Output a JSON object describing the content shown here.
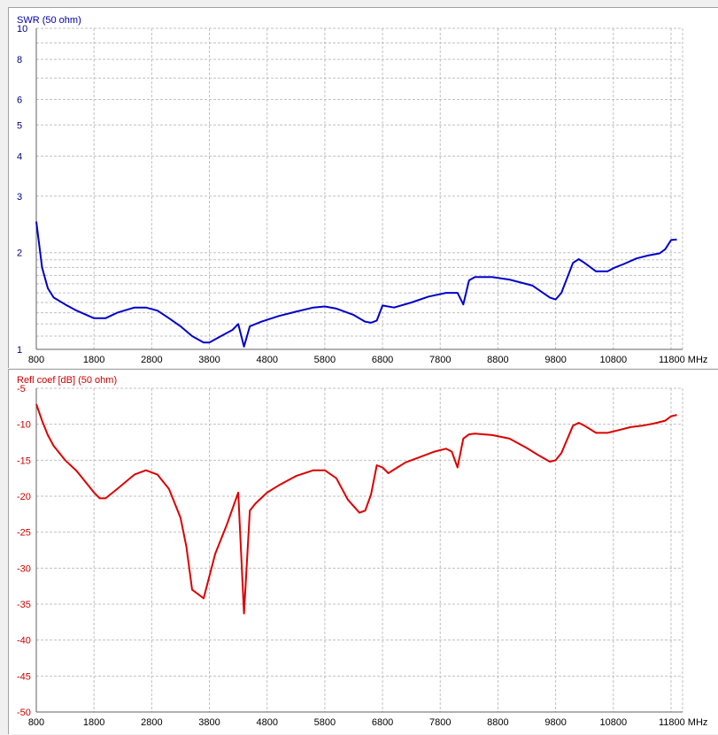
{
  "chart_data": [
    {
      "type": "line",
      "title": "SWR (50 ohm)",
      "xlabel": "MHz",
      "ylabel": "",
      "log_scale_y": true,
      "grid": true,
      "xlim": [
        800,
        12000
      ],
      "ylim": [
        1,
        10
      ],
      "x_ticks": [
        "800",
        "1800",
        "2800",
        "3800",
        "4800",
        "5800",
        "6800",
        "7800",
        "8800",
        "9800",
        "10800",
        "11800 MHz"
      ],
      "y_ticks": [
        "10",
        "8",
        "6",
        "5",
        "4",
        "3",
        "2",
        "1"
      ],
      "y_tick_values": [
        10,
        8,
        6,
        5,
        4,
        3,
        2,
        1
      ],
      "colors": {
        "line": "#0000cc",
        "title": "#0000aa",
        "axis": "#000080",
        "grid": "#c0c0c0"
      },
      "series": [
        {
          "x": [
            800,
            900,
            1000,
            1100,
            1300,
            1500,
            1800,
            2000,
            2200,
            2500,
            2700,
            2900,
            3100,
            3300,
            3500,
            3700,
            3800,
            4000,
            4200,
            4300,
            4400,
            4500,
            4700,
            5000,
            5300,
            5600,
            5800,
            6000,
            6300,
            6500,
            6600,
            6700,
            6800,
            7000,
            7300,
            7600,
            7900,
            8100,
            8200,
            8300,
            8400,
            8700,
            9000,
            9400,
            9700,
            9800,
            9900,
            10100,
            10200,
            10300,
            10500,
            10700,
            10800,
            11000,
            11200,
            11400,
            11600,
            11700,
            11800,
            11900
          ],
          "y": [
            2.5,
            1.8,
            1.55,
            1.45,
            1.38,
            1.32,
            1.25,
            1.25,
            1.3,
            1.35,
            1.35,
            1.32,
            1.25,
            1.18,
            1.1,
            1.05,
            1.05,
            1.1,
            1.15,
            1.2,
            1.02,
            1.18,
            1.22,
            1.27,
            1.31,
            1.35,
            1.36,
            1.34,
            1.28,
            1.22,
            1.21,
            1.23,
            1.37,
            1.35,
            1.4,
            1.46,
            1.5,
            1.5,
            1.38,
            1.64,
            1.68,
            1.68,
            1.65,
            1.58,
            1.45,
            1.43,
            1.5,
            1.86,
            1.91,
            1.86,
            1.75,
            1.75,
            1.79,
            1.85,
            1.92,
            1.96,
            1.99,
            2.05,
            2.19,
            2.2
          ]
        }
      ]
    },
    {
      "type": "line",
      "title": "Refl coef [dB] (50 ohm)",
      "xlabel": "MHz",
      "ylabel": "",
      "grid": true,
      "xlim": [
        800,
        12000
      ],
      "ylim": [
        -50,
        -5
      ],
      "x_ticks": [
        "800",
        "1800",
        "2800",
        "3800",
        "4800",
        "5800",
        "6800",
        "7800",
        "8800",
        "9800",
        "10800",
        "11800 MHz"
      ],
      "y_ticks": [
        "-5",
        "-10",
        "-15",
        "-20",
        "-25",
        "-30",
        "-35",
        "-40",
        "-45",
        "-50"
      ],
      "y_tick_values": [
        -5,
        -10,
        -15,
        -20,
        -25,
        -30,
        -35,
        -40,
        -45,
        -50
      ],
      "colors": {
        "line": "#dd0000",
        "title": "#cc0000",
        "axis": "#cc0000",
        "grid": "#c0c0c0"
      },
      "series": [
        {
          "x": [
            800,
            900,
            1000,
            1100,
            1300,
            1500,
            1800,
            1900,
            2000,
            2200,
            2500,
            2700,
            2900,
            3100,
            3300,
            3400,
            3500,
            3700,
            3900,
            4100,
            4300,
            4400,
            4500,
            4600,
            4800,
            5000,
            5300,
            5600,
            5800,
            6000,
            6200,
            6400,
            6500,
            6600,
            6700,
            6800,
            6900,
            7000,
            7200,
            7400,
            7700,
            7900,
            8000,
            8100,
            8200,
            8300,
            8400,
            8700,
            9000,
            9300,
            9500,
            9700,
            9800,
            9900,
            10100,
            10200,
            10300,
            10500,
            10700,
            10900,
            11100,
            11300,
            11500,
            11700,
            11800,
            11900
          ],
          "y": [
            -7.2,
            -9.5,
            -11.5,
            -13,
            -15,
            -16.5,
            -19.5,
            -20.3,
            -20.3,
            -19,
            -17,
            -16.4,
            -17,
            -19,
            -23,
            -27,
            -33,
            -34.2,
            -28,
            -24,
            -19.5,
            -36.3,
            -22,
            -21,
            -19.5,
            -18.5,
            -17.2,
            -16.4,
            -16.4,
            -17.5,
            -20.5,
            -22.3,
            -22,
            -19.8,
            -15.7,
            -16,
            -16.8,
            -16.3,
            -15.3,
            -14.7,
            -13.8,
            -13.4,
            -13.8,
            -16,
            -12,
            -11.4,
            -11.3,
            -11.5,
            -12,
            -13.3,
            -14.3,
            -15.2,
            -15,
            -14,
            -10.2,
            -9.8,
            -10.2,
            -11.2,
            -11.2,
            -10.8,
            -10.4,
            -10.2,
            -9.9,
            -9.5,
            -8.9,
            -8.7
          ]
        }
      ]
    }
  ]
}
